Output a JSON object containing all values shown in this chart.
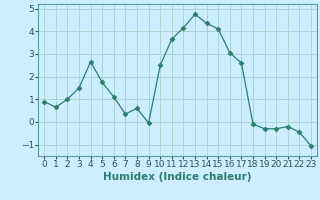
{
  "x": [
    0,
    1,
    2,
    3,
    4,
    5,
    6,
    7,
    8,
    9,
    10,
    11,
    12,
    13,
    14,
    15,
    16,
    17,
    18,
    19,
    20,
    21,
    22,
    23
  ],
  "y": [
    0.9,
    0.65,
    1.0,
    1.5,
    2.65,
    1.75,
    1.1,
    0.35,
    0.6,
    -0.05,
    2.5,
    3.65,
    4.15,
    4.75,
    4.35,
    4.1,
    3.05,
    2.6,
    -0.1,
    -0.3,
    -0.3,
    -0.2,
    -0.45,
    -1.05
  ],
  "line_color": "#2e7d6e",
  "marker": "D",
  "marker_size": 2.5,
  "bg_color": "#cceeff",
  "grid_color": "#aad4d4",
  "xlabel": "Humidex (Indice chaleur)",
  "ylim": [
    -1.5,
    5.2
  ],
  "xlim": [
    -0.5,
    23.5
  ],
  "yticks": [
    -1,
    0,
    1,
    2,
    3,
    4,
    5
  ],
  "xtick_labels": [
    "0",
    "1",
    "2",
    "3",
    "4",
    "5",
    "6",
    "7",
    "8",
    "9",
    "10",
    "11",
    "12",
    "13",
    "14",
    "15",
    "16",
    "17",
    "18",
    "19",
    "20",
    "21",
    "22",
    "23"
  ],
  "xlabel_fontsize": 7.5,
  "tick_fontsize": 6.5
}
